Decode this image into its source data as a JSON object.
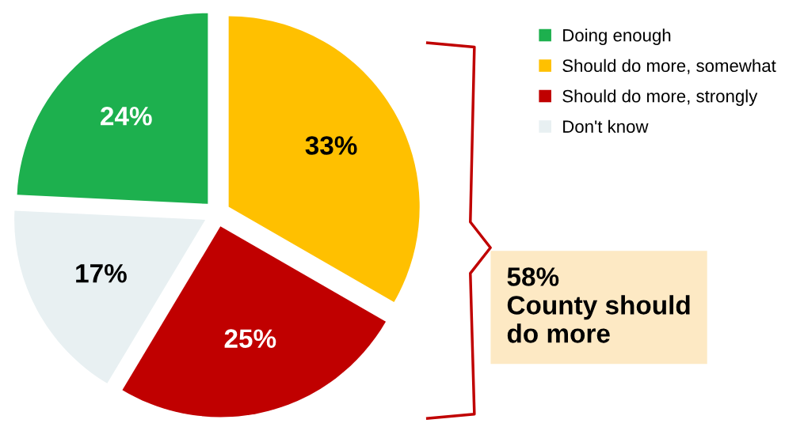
{
  "chart_data": {
    "type": "pie",
    "categories": [
      "Doing enough",
      "Should do more, somewhat",
      "Should do more, strongly",
      "Don't know"
    ],
    "values": [
      24,
      33,
      25,
      17
    ],
    "colors": [
      "#1db04e",
      "#ffc000",
      "#c00000",
      "#e8f0f2"
    ],
    "value_labels": [
      "24%",
      "33%",
      "25%",
      "17%"
    ],
    "legend": "top right",
    "annotations": [
      "58%\nCounty should\ndo more"
    ]
  }
}
